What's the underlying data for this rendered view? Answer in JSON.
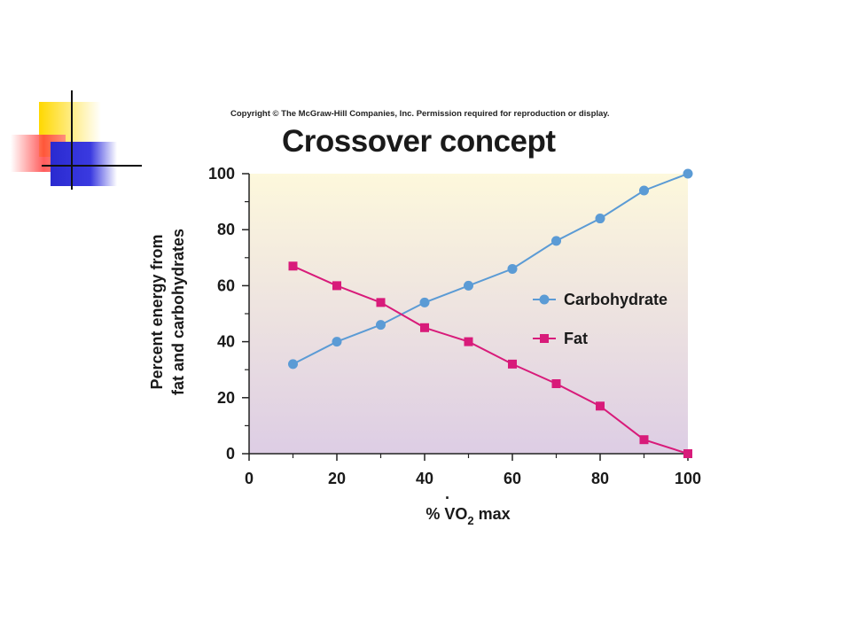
{
  "copyright": "Copyright © The McGraw-Hill Companies, Inc. Permission required for reproduction or display.",
  "chart_data": {
    "type": "line",
    "title": "Crossover concept",
    "xlabel": "% V̇O2 max",
    "xlabel_parts": {
      "prefix": "% ",
      "symbol": "V",
      "dot": "·",
      "base": "O",
      "subscript": "2",
      "suffix": " max"
    },
    "ylabel_lines": [
      "Percent energy from",
      "fat and carbohydrates"
    ],
    "xlim": [
      0,
      100
    ],
    "ylim": [
      0,
      100
    ],
    "xticks": [
      0,
      20,
      40,
      60,
      80,
      100
    ],
    "yticks": [
      0,
      20,
      40,
      60,
      80,
      100
    ],
    "x": [
      10,
      20,
      30,
      40,
      50,
      60,
      70,
      80,
      90,
      100
    ],
    "series": [
      {
        "name": "Carbohydrate",
        "color": "#5b9bd5",
        "marker": "circle",
        "values": [
          32,
          40,
          46,
          54,
          60,
          66,
          76,
          84,
          94,
          100
        ]
      },
      {
        "name": "Fat",
        "color": "#d81b7a",
        "marker": "square",
        "values": [
          67,
          60,
          54,
          45,
          40,
          32,
          25,
          17,
          5,
          0
        ]
      }
    ],
    "legend_position": "right-middle",
    "background_gradient": [
      "#fdf8dc",
      "#ddcde4"
    ],
    "grid": false
  }
}
